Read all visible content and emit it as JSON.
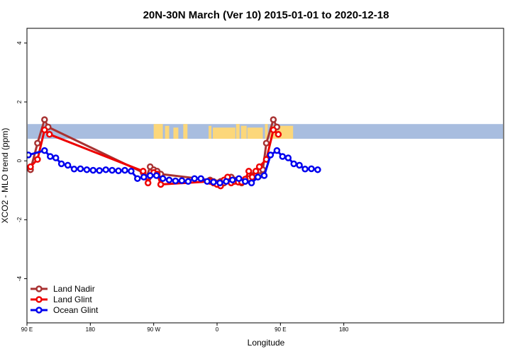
{
  "chart_data": {
    "type": "line",
    "title": "20N-30N March (Ver 10)   2015-01-01 to 2020-12-18",
    "xlabel": "Longitude",
    "ylabel": "XCO2 - MLO trend (ppm)",
    "xlim": [
      90,
      450
    ],
    "ylim": [
      -5.5,
      4.5
    ],
    "x_ticks": [
      {
        "value": 90,
        "label": "90 E"
      },
      {
        "value": 180,
        "label": "180"
      },
      {
        "value": 270,
        "label": "90 W"
      },
      {
        "value": 360,
        "label": "0"
      },
      {
        "value": 450,
        "label": "90 E"
      },
      {
        "value": 540,
        "label": "180"
      }
    ],
    "y_ticks": [
      {
        "value": -4,
        "label": "-4"
      },
      {
        "value": -2,
        "label": "-2"
      },
      {
        "value": 0,
        "label": "0"
      },
      {
        "value": 2,
        "label": "2"
      },
      {
        "value": 4,
        "label": "4"
      }
    ],
    "grid": false,
    "legend_position": "bottom-left",
    "map_band": {
      "ymin": 0.75,
      "ymax": 1.25,
      "ocean_color": "#a8bddf",
      "land_color": "#fcd77a"
    },
    "series": [
      {
        "name": "Land Nadir",
        "color": "#a83232",
        "points": [
          [
            95,
            -0.3
          ],
          [
            105,
            0.6
          ],
          [
            115,
            1.4
          ],
          [
            120,
            1.15
          ],
          [
            255,
            -0.4
          ],
          [
            260,
            -0.55
          ],
          [
            265,
            -0.2
          ],
          [
            270,
            -0.3
          ],
          [
            275,
            -0.35
          ],
          [
            280,
            -0.45
          ],
          [
            350,
            -0.65
          ],
          [
            355,
            -0.7
          ],
          [
            360,
            -0.75
          ],
          [
            365,
            -0.7
          ],
          [
            370,
            -0.75
          ],
          [
            375,
            -0.6
          ],
          [
            380,
            -0.55
          ],
          [
            385,
            -0.65
          ],
          [
            390,
            -0.7
          ],
          [
            395,
            -0.75
          ],
          [
            400,
            -0.7
          ],
          [
            405,
            -0.6
          ],
          [
            410,
            -0.5
          ],
          [
            415,
            -0.45
          ],
          [
            420,
            -0.5
          ],
          [
            425,
            -0.3
          ],
          [
            430,
            0.6
          ],
          [
            440,
            1.4
          ],
          [
            445,
            1.15
          ]
        ]
      },
      {
        "name": "Land Glint",
        "color": "#ee0000",
        "points": [
          [
            95,
            -0.2
          ],
          [
            105,
            0.05
          ],
          [
            115,
            1.05
          ],
          [
            122,
            0.9
          ],
          [
            255,
            -0.35
          ],
          [
            262,
            -0.75
          ],
          [
            270,
            -0.4
          ],
          [
            275,
            -0.45
          ],
          [
            280,
            -0.8
          ],
          [
            350,
            -0.7
          ],
          [
            355,
            -0.75
          ],
          [
            360,
            -0.8
          ],
          [
            365,
            -0.85
          ],
          [
            370,
            -0.65
          ],
          [
            375,
            -0.55
          ],
          [
            380,
            -0.75
          ],
          [
            385,
            -0.7
          ],
          [
            390,
            -0.72
          ],
          [
            395,
            -0.72
          ],
          [
            400,
            -0.62
          ],
          [
            405,
            -0.35
          ],
          [
            410,
            -0.55
          ],
          [
            415,
            -0.35
          ],
          [
            420,
            -0.2
          ],
          [
            430,
            0.05
          ],
          [
            440,
            1.05
          ],
          [
            447,
            0.9
          ]
        ]
      },
      {
        "name": "Ocean Glint",
        "color": "#0000ee",
        "points": [
          [
            92,
            0.2
          ],
          [
            115,
            0.35
          ],
          [
            123,
            0.15
          ],
          [
            131,
            0.1
          ],
          [
            139,
            -0.1
          ],
          [
            148,
            -0.15
          ],
          [
            157,
            -0.28
          ],
          [
            166,
            -0.27
          ],
          [
            175,
            -0.3
          ],
          [
            184,
            -0.32
          ],
          [
            193,
            -0.33
          ],
          [
            202,
            -0.3
          ],
          [
            211,
            -0.32
          ],
          [
            220,
            -0.34
          ],
          [
            229,
            -0.32
          ],
          [
            238,
            -0.35
          ],
          [
            247,
            -0.6
          ],
          [
            256,
            -0.55
          ],
          [
            265,
            -0.5
          ],
          [
            274,
            -0.5
          ],
          [
            283,
            -0.6
          ],
          [
            292,
            -0.65
          ],
          [
            301,
            -0.68
          ],
          [
            310,
            -0.67
          ],
          [
            319,
            -0.7
          ],
          [
            328,
            -0.6
          ],
          [
            337,
            -0.6
          ],
          [
            346,
            -0.7
          ],
          [
            355,
            -0.72
          ],
          [
            364,
            -0.75
          ],
          [
            373,
            -0.7
          ],
          [
            382,
            -0.65
          ],
          [
            391,
            -0.6
          ],
          [
            400,
            -0.7
          ],
          [
            409,
            -0.75
          ],
          [
            418,
            -0.55
          ],
          [
            427,
            -0.5
          ],
          [
            436,
            0.2
          ],
          [
            445,
            0.35
          ],
          [
            453,
            0.15
          ],
          [
            461,
            0.1
          ],
          [
            469,
            -0.1
          ],
          [
            477,
            -0.15
          ],
          [
            485,
            -0.28
          ],
          [
            494,
            -0.27
          ],
          [
            503,
            -0.3
          ]
        ]
      }
    ]
  }
}
